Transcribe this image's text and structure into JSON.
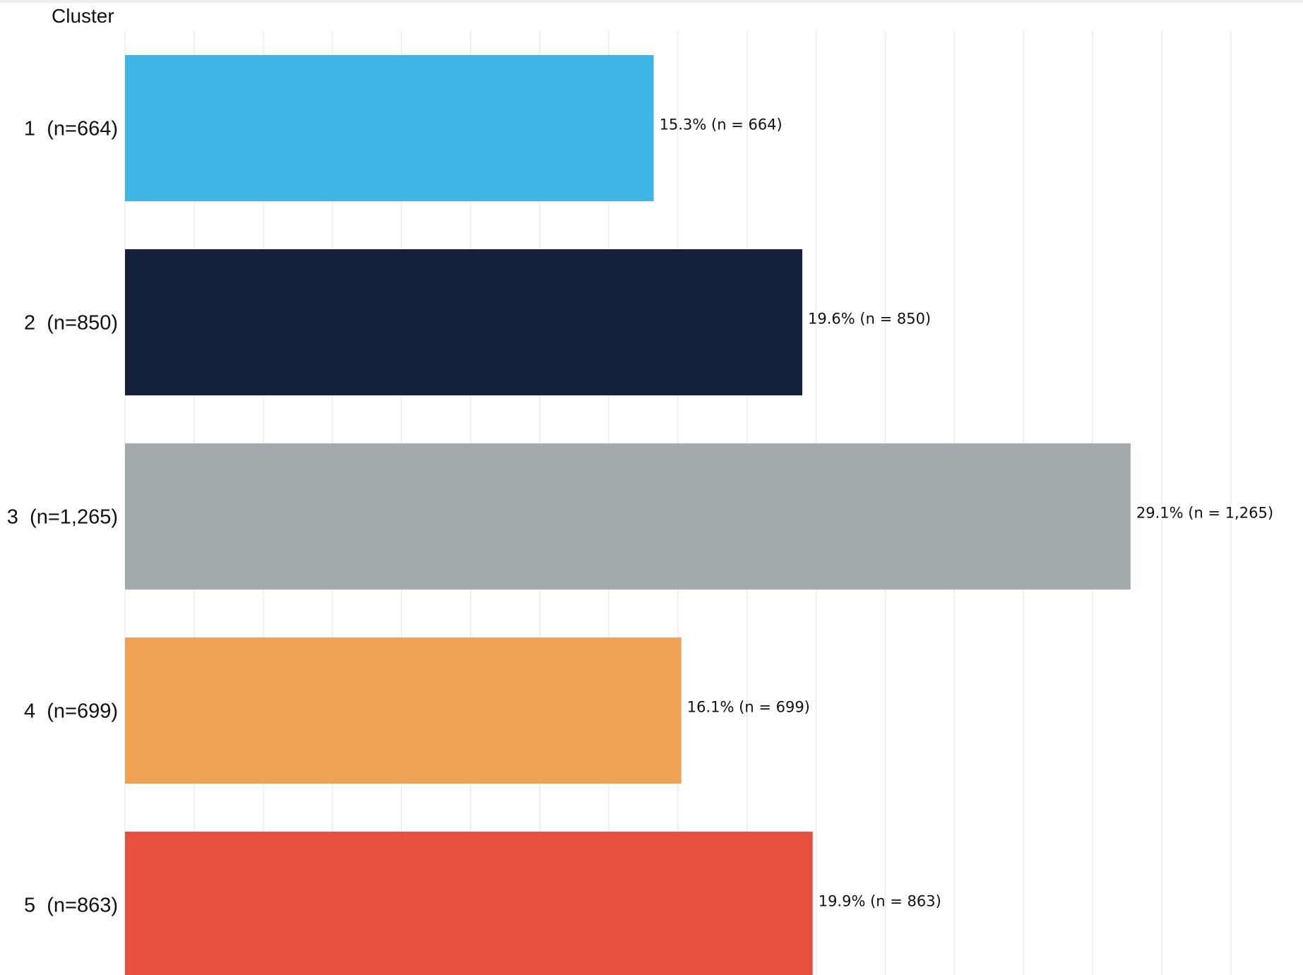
{
  "chart_data": {
    "type": "bar",
    "orientation": "horizontal",
    "axis_header": "Cluster",
    "categories": [
      "1  (n=664)",
      "2  (n=850)",
      "3  (n=1,265)",
      "4  (n=699)",
      "5  (n=863)"
    ],
    "values": [
      15.3,
      19.6,
      29.1,
      16.1,
      19.9
    ],
    "counts": [
      664,
      850,
      1265,
      699,
      863
    ],
    "data_labels": [
      "15.3% (n = 664)",
      "19.6% (n = 850)",
      "29.1% (n = 1,265)",
      "16.1% (n = 699)",
      "19.9% (n = 863)"
    ],
    "colors": [
      "#3eb5e5",
      "#15203a",
      "#a4abae",
      "#efa156",
      "#e6513f"
    ],
    "xlim": [
      0,
      34
    ],
    "grid": true,
    "grid_step": 2,
    "legend": "none"
  }
}
